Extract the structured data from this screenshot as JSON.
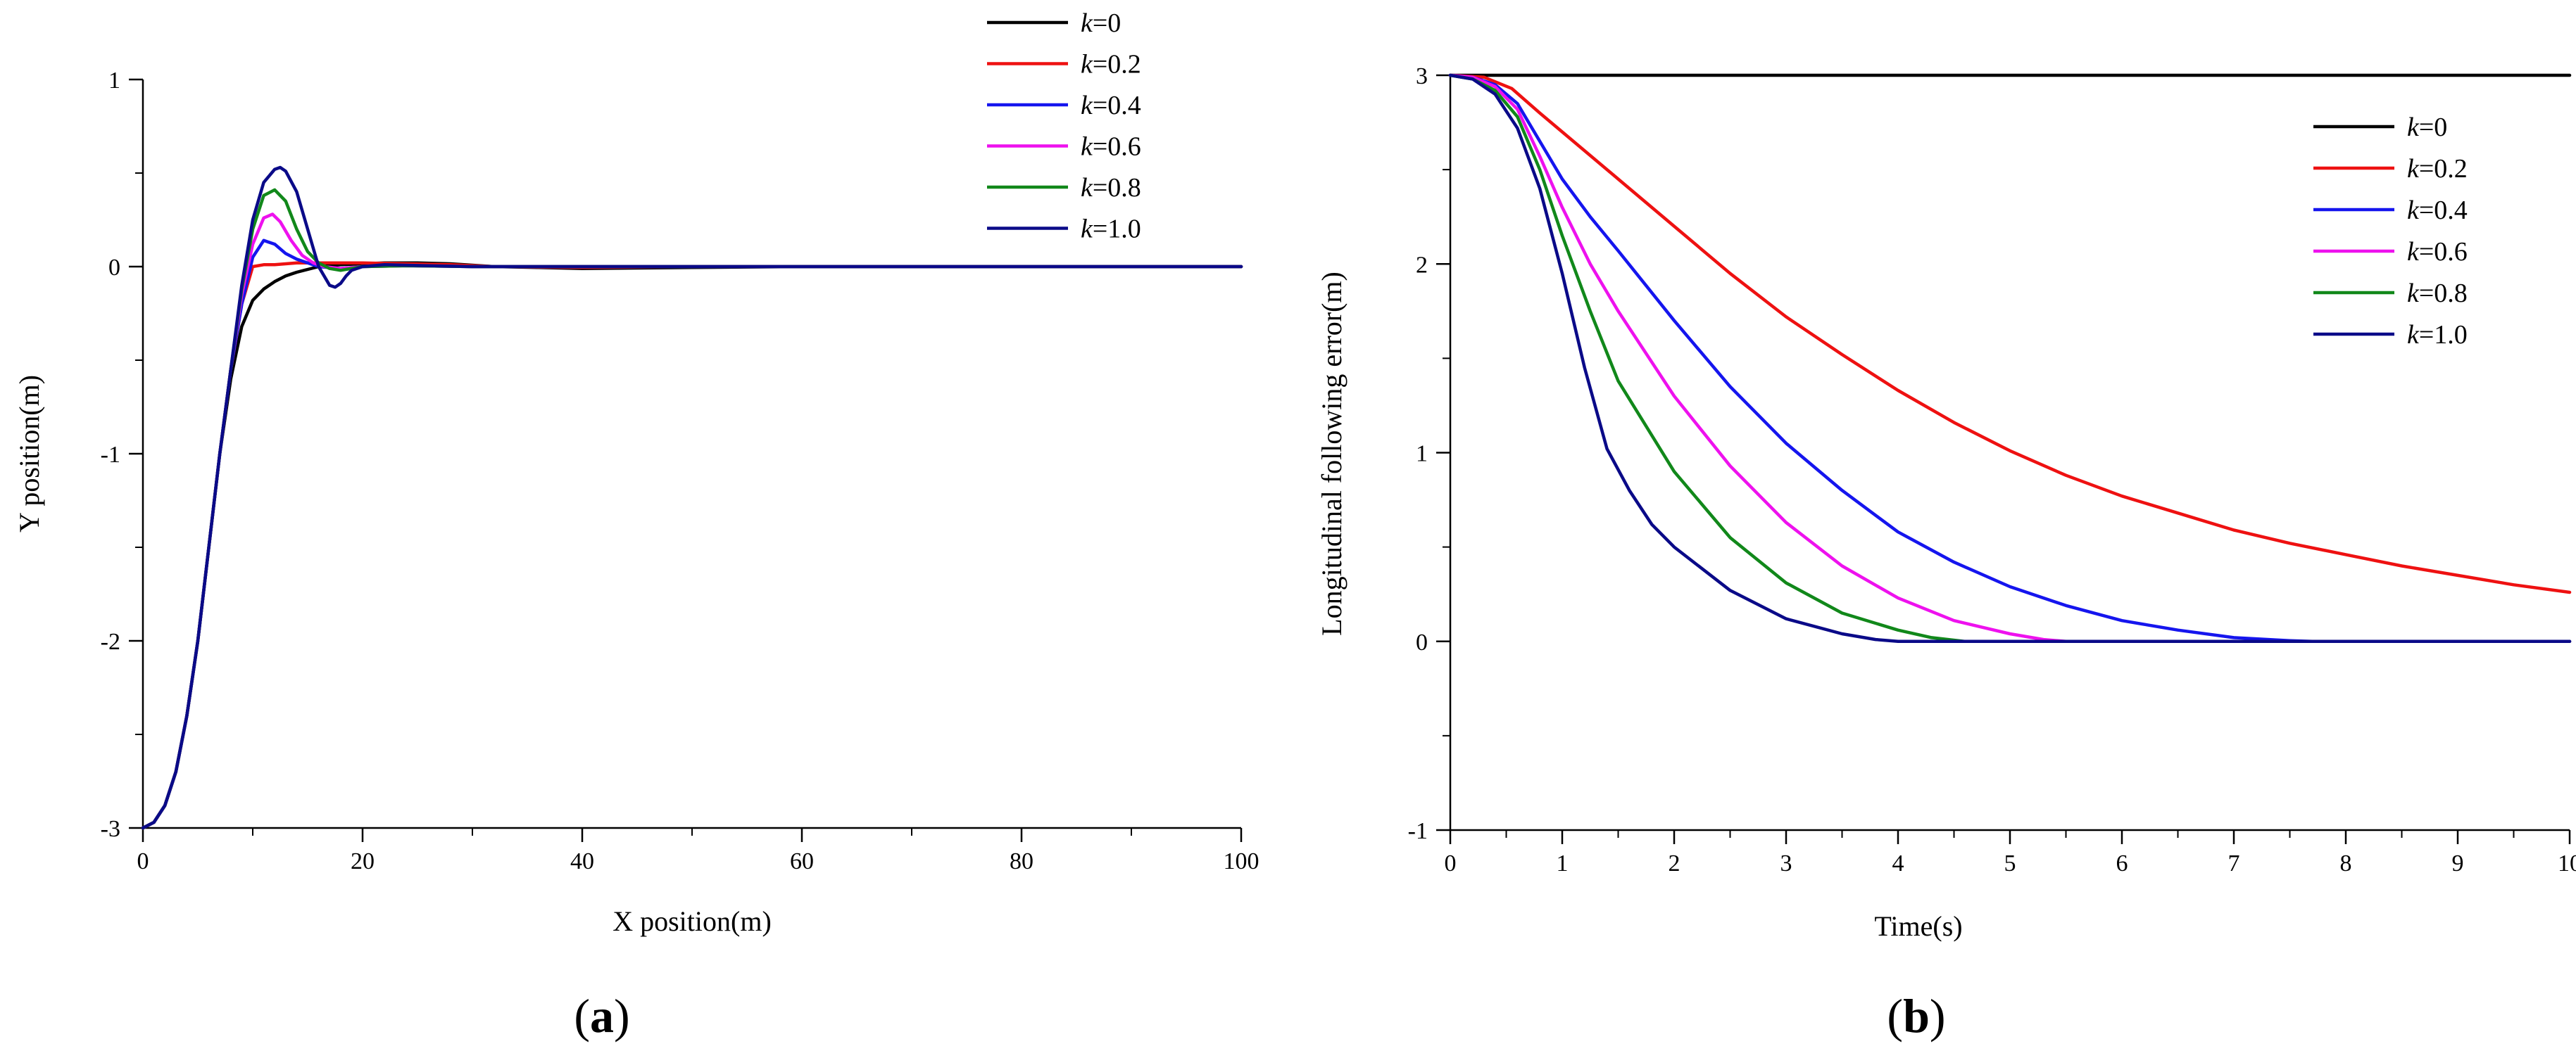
{
  "colors": {
    "k0": "#000000",
    "k02": "#ee1111",
    "k04": "#1515ee",
    "k06": "#ee11ee",
    "k08": "#11881a",
    "k10": "#0a0a88"
  },
  "chart_data": [
    {
      "type": "line",
      "panel_label": "a",
      "title": "",
      "xlabel": "X position(m)",
      "ylabel": "Y position(m)",
      "xlim": [
        0,
        100
      ],
      "ylim": [
        -3,
        1
      ],
      "xticks": [
        0,
        20,
        40,
        60,
        80,
        100
      ],
      "yticks": [
        -3,
        -2,
        -1,
        0,
        1
      ],
      "grid": false,
      "legend_position": "top-right",
      "series": [
        {
          "name": "k=0",
          "legend_var": "k",
          "legend_val": "=0",
          "color_key": "k0",
          "x": [
            0,
            1,
            2,
            3,
            4,
            5,
            6,
            7,
            8,
            9,
            10,
            11,
            12,
            13,
            14,
            15,
            16,
            17,
            18,
            20,
            22,
            25,
            28,
            32,
            36,
            40,
            50,
            60,
            70,
            80,
            90,
            100
          ],
          "y": [
            -3,
            -2.97,
            -2.88,
            -2.7,
            -2.4,
            -2.0,
            -1.5,
            -1.0,
            -0.6,
            -0.32,
            -0.18,
            -0.12,
            -0.08,
            -0.05,
            -0.03,
            -0.015,
            0.0,
            0.005,
            0.01,
            0.015,
            0.02,
            0.02,
            0.015,
            0.0,
            -0.005,
            -0.01,
            -0.005,
            0.0,
            0.0,
            0.0,
            0.0,
            0.0
          ]
        },
        {
          "name": "k=0.2",
          "legend_var": "k",
          "legend_val": "=0.2",
          "color_key": "k02",
          "x": [
            0,
            1,
            2,
            3,
            4,
            5,
            6,
            7,
            8,
            9,
            10,
            11,
            12,
            13,
            14,
            16,
            18,
            20,
            24,
            28,
            32,
            40,
            50,
            60,
            70,
            80,
            90,
            100
          ],
          "y": [
            -3,
            -2.97,
            -2.88,
            -2.7,
            -2.4,
            -2.0,
            -1.5,
            -1.0,
            -0.55,
            -0.2,
            0.0,
            0.01,
            0.01,
            0.015,
            0.02,
            0.02,
            0.02,
            0.02,
            0.015,
            0.01,
            0.0,
            -0.005,
            0.0,
            0.0,
            0.0,
            0.0,
            0.0,
            0.0
          ]
        },
        {
          "name": "k=0.4",
          "legend_var": "k",
          "legend_val": "=0.4",
          "color_key": "k04",
          "x": [
            0,
            1,
            2,
            3,
            4,
            5,
            6,
            7,
            8,
            9,
            10,
            11,
            12,
            13,
            14,
            15,
            16,
            18,
            20,
            24,
            30,
            40,
            50,
            60,
            70,
            80,
            90,
            100
          ],
          "y": [
            -3,
            -2.97,
            -2.88,
            -2.7,
            -2.4,
            -2.0,
            -1.5,
            -1.0,
            -0.55,
            -0.2,
            0.05,
            0.14,
            0.12,
            0.07,
            0.04,
            0.02,
            0.0,
            -0.01,
            0.0,
            0.005,
            0.0,
            0.0,
            0.0,
            0.0,
            0.0,
            0.0,
            0.0,
            0.0
          ]
        },
        {
          "name": "k=0.6",
          "legend_var": "k",
          "legend_val": "=0.6",
          "color_key": "k06",
          "x": [
            0,
            1,
            2,
            3,
            4,
            5,
            6,
            7,
            8,
            9,
            10,
            11,
            11.8,
            12.5,
            13.5,
            14.5,
            15.5,
            16.5,
            18,
            20,
            24,
            30,
            40,
            50,
            60,
            70,
            80,
            90,
            100
          ],
          "y": [
            -3,
            -2.97,
            -2.88,
            -2.7,
            -2.4,
            -2.0,
            -1.5,
            -1.0,
            -0.55,
            -0.15,
            0.12,
            0.26,
            0.28,
            0.24,
            0.14,
            0.06,
            0.02,
            0.0,
            -0.01,
            0.0,
            0.005,
            0.0,
            0.0,
            0.0,
            0.0,
            0.0,
            0.0,
            0.0,
            0.0
          ]
        },
        {
          "name": "k=0.8",
          "legend_var": "k",
          "legend_val": "=0.8",
          "color_key": "k08",
          "x": [
            0,
            1,
            2,
            3,
            4,
            5,
            6,
            7,
            8,
            9,
            10,
            11,
            12,
            13,
            14,
            15,
            16,
            17,
            18,
            20,
            24,
            30,
            40,
            50,
            60,
            70,
            80,
            90,
            100
          ],
          "y": [
            -3,
            -2.97,
            -2.88,
            -2.7,
            -2.4,
            -2.0,
            -1.5,
            -1.0,
            -0.55,
            -0.12,
            0.2,
            0.38,
            0.41,
            0.35,
            0.2,
            0.08,
            0.02,
            -0.01,
            -0.02,
            0.0,
            0.005,
            0.0,
            0.0,
            0.0,
            0.0,
            0.0,
            0.0,
            0.0,
            0.0
          ]
        },
        {
          "name": "k=1.0",
          "legend_var": "k",
          "legend_val": "=1.0",
          "color_key": "k10",
          "x": [
            0,
            1,
            2,
            3,
            4,
            5,
            6,
            7,
            8,
            9,
            10,
            11,
            12,
            12.5,
            13,
            14,
            15,
            16,
            17,
            17.5,
            18,
            18.5,
            19,
            20,
            22,
            26,
            30,
            40,
            50,
            60,
            70,
            80,
            90,
            100
          ],
          "y": [
            -3,
            -2.97,
            -2.88,
            -2.7,
            -2.4,
            -2.0,
            -1.5,
            -1.0,
            -0.55,
            -0.1,
            0.25,
            0.45,
            0.52,
            0.53,
            0.51,
            0.4,
            0.2,
            0.0,
            -0.1,
            -0.11,
            -0.09,
            -0.05,
            -0.02,
            0.0,
            0.01,
            0.005,
            0.0,
            0.0,
            0.0,
            0.0,
            0.0,
            0.0,
            0.0,
            0.0
          ]
        }
      ]
    },
    {
      "type": "line",
      "panel_label": "b",
      "title": "",
      "xlabel": "Time(s)",
      "ylabel": "Longitudinal following error(m)",
      "xlim": [
        0,
        10
      ],
      "ylim": [
        -1,
        3
      ],
      "xticks": [
        0,
        1,
        2,
        3,
        4,
        5,
        6,
        7,
        8,
        9,
        10
      ],
      "yticks": [
        -1,
        0,
        1,
        2,
        3
      ],
      "grid": false,
      "legend_position": "top-right",
      "series": [
        {
          "name": "k=0",
          "legend_var": "k",
          "legend_val": "=0",
          "color_key": "k0",
          "x": [
            0,
            10
          ],
          "y": [
            3,
            3
          ]
        },
        {
          "name": "k=0.2",
          "legend_var": "k",
          "legend_val": "=0.2",
          "color_key": "k02",
          "x": [
            0,
            0.3,
            0.55,
            0.8,
            1,
            1.5,
            2,
            2.5,
            3,
            3.5,
            4,
            4.5,
            5,
            5.5,
            6,
            6.5,
            7,
            7.5,
            8,
            8.5,
            9,
            9.5,
            10
          ],
          "y": [
            3,
            2.99,
            2.93,
            2.8,
            2.7,
            2.45,
            2.2,
            1.95,
            1.72,
            1.52,
            1.33,
            1.16,
            1.01,
            0.88,
            0.77,
            0.68,
            0.59,
            0.52,
            0.46,
            0.4,
            0.35,
            0.3,
            0.26
          ]
        },
        {
          "name": "k=0.4",
          "legend_var": "k",
          "legend_val": "=0.4",
          "color_key": "k04",
          "x": [
            0,
            0.2,
            0.4,
            0.6,
            0.8,
            1,
            1.25,
            1.5,
            2,
            2.5,
            3,
            3.5,
            4,
            4.5,
            5,
            5.5,
            6,
            6.5,
            7,
            7.5,
            7.7,
            8,
            9,
            10
          ],
          "y": [
            3,
            2.99,
            2.95,
            2.85,
            2.65,
            2.45,
            2.25,
            2.07,
            1.7,
            1.35,
            1.05,
            0.8,
            0.58,
            0.42,
            0.29,
            0.19,
            0.11,
            0.06,
            0.02,
            0.004,
            0.0,
            0.0,
            0.0,
            0.0
          ]
        },
        {
          "name": "k=0.6",
          "legend_var": "k",
          "legend_val": "=0.6",
          "color_key": "k06",
          "x": [
            0,
            0.2,
            0.4,
            0.6,
            0.8,
            1,
            1.25,
            1.5,
            2,
            2.5,
            3,
            3.5,
            4,
            4.5,
            5,
            5.3,
            5.5,
            6,
            7,
            8,
            9,
            10
          ],
          "y": [
            3,
            2.99,
            2.94,
            2.82,
            2.57,
            2.3,
            2.0,
            1.75,
            1.3,
            0.93,
            0.63,
            0.4,
            0.23,
            0.11,
            0.04,
            0.01,
            0.0,
            0.0,
            0.0,
            0.0,
            0.0,
            0.0
          ]
        },
        {
          "name": "k=0.8",
          "legend_var": "k",
          "legend_val": "=0.8",
          "color_key": "k08",
          "x": [
            0,
            0.2,
            0.4,
            0.6,
            0.8,
            1,
            1.25,
            1.5,
            2,
            2.5,
            3,
            3.5,
            4,
            4.3,
            4.6,
            5,
            6,
            7,
            8,
            9,
            10
          ],
          "y": [
            3,
            2.98,
            2.92,
            2.78,
            2.5,
            2.15,
            1.75,
            1.38,
            0.9,
            0.55,
            0.31,
            0.15,
            0.06,
            0.02,
            0.0,
            0.0,
            0.0,
            0.0,
            0.0,
            0.0,
            0.0
          ]
        },
        {
          "name": "k=1.0",
          "legend_var": "k",
          "legend_val": "=1.0",
          "color_key": "k10",
          "x": [
            0,
            0.2,
            0.4,
            0.6,
            0.8,
            1,
            1.2,
            1.4,
            1.6,
            1.8,
            2,
            2.5,
            3,
            3.5,
            3.8,
            4,
            5,
            6,
            7,
            8,
            9,
            10
          ],
          "y": [
            3,
            2.98,
            2.9,
            2.72,
            2.4,
            1.95,
            1.45,
            1.02,
            0.8,
            0.62,
            0.5,
            0.27,
            0.12,
            0.04,
            0.01,
            0.0,
            0.0,
            0.0,
            0.0,
            0.0,
            0.0,
            0.0
          ]
        }
      ]
    }
  ]
}
